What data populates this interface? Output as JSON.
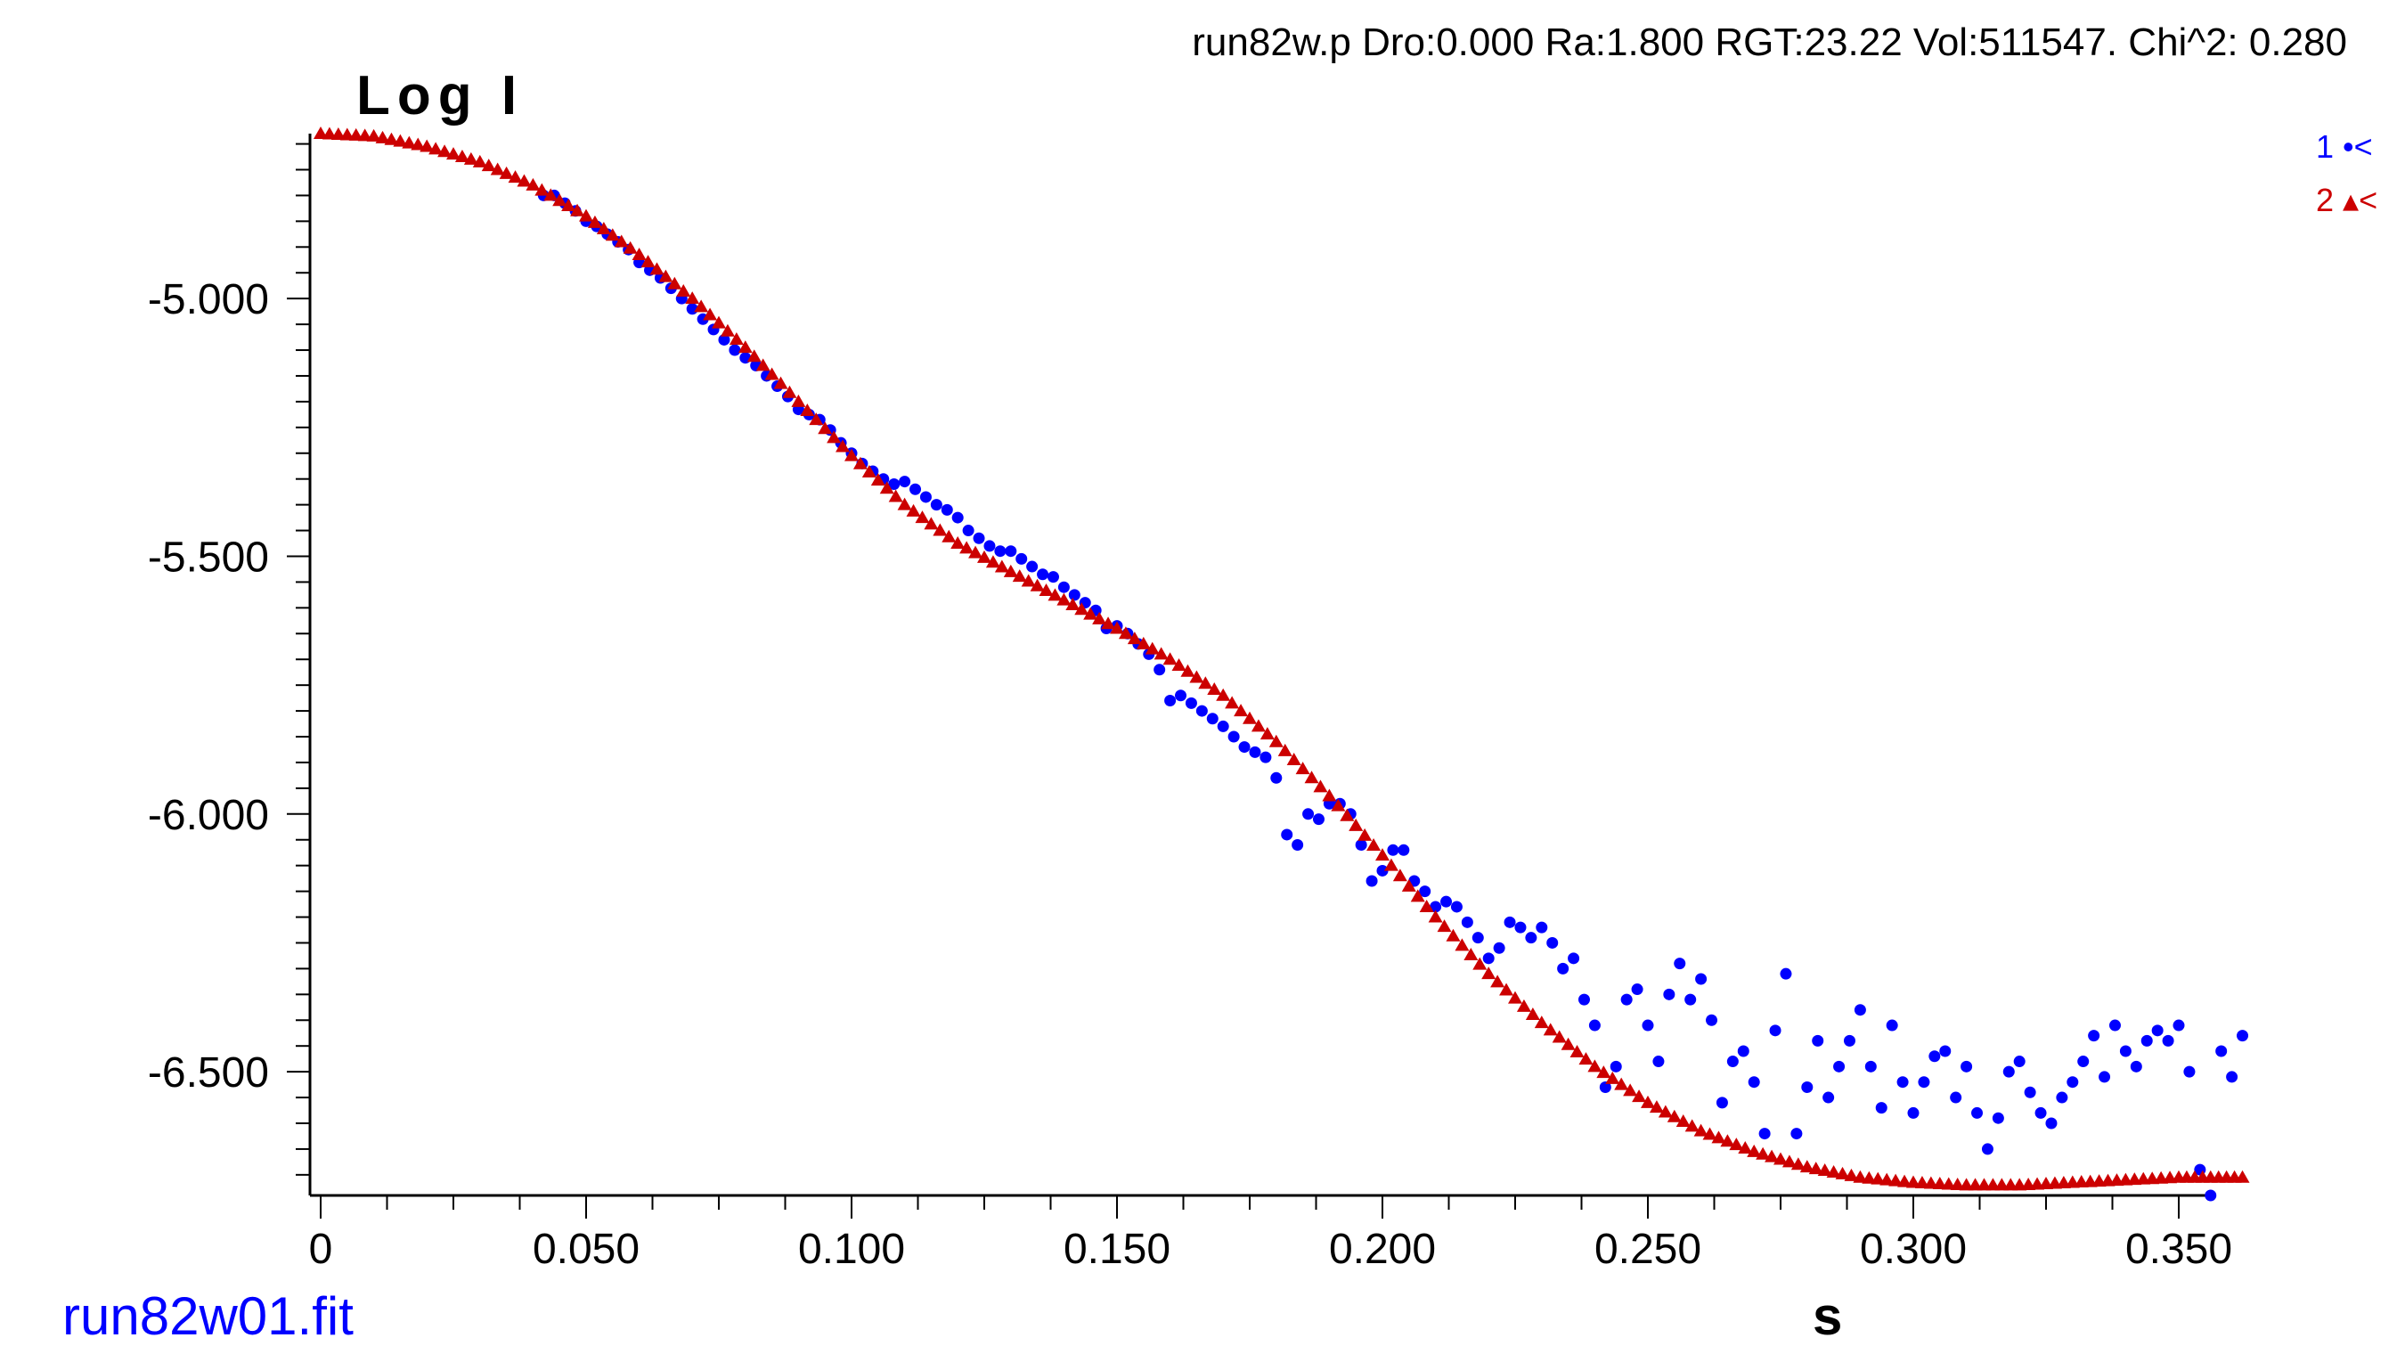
{
  "header": {
    "info": "run82w.p  Dro:0.000  Ra:1.800  RGT:23.22  Vol:511547.  Chi^2:  0.280"
  },
  "footer": {
    "filename": "run82w01.fit"
  },
  "colors": {
    "series1": "#0000ff",
    "series2": "#cc0000",
    "axis": "#000000"
  },
  "chart_data": {
    "type": "scatter",
    "title": "",
    "xlabel": "s",
    "ylabel": "Log  I",
    "xlim": [
      0,
      0.363
    ],
    "ylim": [
      -6.74,
      -4.68
    ],
    "grid": false,
    "legend_position": "top-right",
    "xticks": [
      {
        "value": 0,
        "label": "0"
      },
      {
        "value": 0.05,
        "label": "0.050"
      },
      {
        "value": 0.1,
        "label": "0.100"
      },
      {
        "value": 0.15,
        "label": "0.150"
      },
      {
        "value": 0.2,
        "label": "0.200"
      },
      {
        "value": 0.25,
        "label": "0.250"
      },
      {
        "value": 0.3,
        "label": "0.300"
      },
      {
        "value": 0.35,
        "label": "0.350"
      }
    ],
    "yticks": [
      {
        "value": -5.0,
        "label": "-5.000"
      },
      {
        "value": -5.5,
        "label": "-5.500"
      },
      {
        "value": -6.0,
        "label": "-6.000"
      },
      {
        "value": -6.5,
        "label": "-6.500"
      }
    ],
    "series": [
      {
        "legend": "1 •<",
        "marker": "circle",
        "color": "#0000ff",
        "points": [
          [
            0.042,
            -4.8
          ],
          [
            0.044,
            -4.8
          ],
          [
            0.046,
            -4.815
          ],
          [
            0.048,
            -4.83
          ],
          [
            0.05,
            -4.85
          ],
          [
            0.052,
            -4.86
          ],
          [
            0.054,
            -4.875
          ],
          [
            0.056,
            -4.89
          ],
          [
            0.058,
            -4.905
          ],
          [
            0.06,
            -4.93
          ],
          [
            0.062,
            -4.945
          ],
          [
            0.064,
            -4.96
          ],
          [
            0.066,
            -4.98
          ],
          [
            0.068,
            -5.0
          ],
          [
            0.07,
            -5.02
          ],
          [
            0.072,
            -5.04
          ],
          [
            0.074,
            -5.06
          ],
          [
            0.076,
            -5.08
          ],
          [
            0.078,
            -5.1
          ],
          [
            0.08,
            -5.115
          ],
          [
            0.082,
            -5.13
          ],
          [
            0.084,
            -5.15
          ],
          [
            0.086,
            -5.17
          ],
          [
            0.088,
            -5.19
          ],
          [
            0.09,
            -5.215
          ],
          [
            0.092,
            -5.225
          ],
          [
            0.094,
            -5.235
          ],
          [
            0.096,
            -5.255
          ],
          [
            0.098,
            -5.28
          ],
          [
            0.1,
            -5.3
          ],
          [
            0.102,
            -5.32
          ],
          [
            0.104,
            -5.335
          ],
          [
            0.106,
            -5.35
          ],
          [
            0.108,
            -5.36
          ],
          [
            0.11,
            -5.355
          ],
          [
            0.112,
            -5.37
          ],
          [
            0.114,
            -5.385
          ],
          [
            0.116,
            -5.4
          ],
          [
            0.118,
            -5.41
          ],
          [
            0.12,
            -5.425
          ],
          [
            0.122,
            -5.45
          ],
          [
            0.124,
            -5.465
          ],
          [
            0.126,
            -5.48
          ],
          [
            0.128,
            -5.49
          ],
          [
            0.13,
            -5.49
          ],
          [
            0.132,
            -5.505
          ],
          [
            0.134,
            -5.52
          ],
          [
            0.136,
            -5.535
          ],
          [
            0.138,
            -5.54
          ],
          [
            0.14,
            -5.56
          ],
          [
            0.142,
            -5.575
          ],
          [
            0.144,
            -5.59
          ],
          [
            0.146,
            -5.605
          ],
          [
            0.148,
            -5.64
          ],
          [
            0.15,
            -5.635
          ],
          [
            0.152,
            -5.65
          ],
          [
            0.154,
            -5.67
          ],
          [
            0.156,
            -5.69
          ],
          [
            0.158,
            -5.72
          ],
          [
            0.16,
            -5.78
          ],
          [
            0.162,
            -5.77
          ],
          [
            0.164,
            -5.785
          ],
          [
            0.166,
            -5.8
          ],
          [
            0.168,
            -5.815
          ],
          [
            0.17,
            -5.83
          ],
          [
            0.172,
            -5.85
          ],
          [
            0.174,
            -5.87
          ],
          [
            0.176,
            -5.88
          ],
          [
            0.178,
            -5.89
          ],
          [
            0.18,
            -5.93
          ],
          [
            0.182,
            -6.04
          ],
          [
            0.184,
            -6.06
          ],
          [
            0.186,
            -6.0
          ],
          [
            0.188,
            -6.01
          ],
          [
            0.19,
            -5.98
          ],
          [
            0.192,
            -5.98
          ],
          [
            0.194,
            -6.0
          ],
          [
            0.196,
            -6.06
          ],
          [
            0.198,
            -6.13
          ],
          [
            0.2,
            -6.11
          ],
          [
            0.202,
            -6.07
          ],
          [
            0.204,
            -6.07
          ],
          [
            0.206,
            -6.13
          ],
          [
            0.208,
            -6.15
          ],
          [
            0.21,
            -6.18
          ],
          [
            0.212,
            -6.17
          ],
          [
            0.214,
            -6.18
          ],
          [
            0.216,
            -6.21
          ],
          [
            0.218,
            -6.24
          ],
          [
            0.22,
            -6.28
          ],
          [
            0.222,
            -6.26
          ],
          [
            0.224,
            -6.21
          ],
          [
            0.226,
            -6.22
          ],
          [
            0.228,
            -6.24
          ],
          [
            0.23,
            -6.22
          ],
          [
            0.232,
            -6.25
          ],
          [
            0.234,
            -6.3
          ],
          [
            0.236,
            -6.28
          ],
          [
            0.238,
            -6.36
          ],
          [
            0.24,
            -6.41
          ],
          [
            0.242,
            -6.53
          ],
          [
            0.244,
            -6.49
          ],
          [
            0.246,
            -6.36
          ],
          [
            0.248,
            -6.34
          ],
          [
            0.25,
            -6.41
          ],
          [
            0.252,
            -6.48
          ],
          [
            0.254,
            -6.35
          ],
          [
            0.256,
            -6.29
          ],
          [
            0.258,
            -6.36
          ],
          [
            0.26,
            -6.32
          ],
          [
            0.262,
            -6.4
          ],
          [
            0.264,
            -6.56
          ],
          [
            0.266,
            -6.48
          ],
          [
            0.268,
            -6.46
          ],
          [
            0.27,
            -6.52
          ],
          [
            0.272,
            -6.62
          ],
          [
            0.274,
            -6.42
          ],
          [
            0.276,
            -6.31
          ],
          [
            0.278,
            -6.62
          ],
          [
            0.28,
            -6.53
          ],
          [
            0.282,
            -6.44
          ],
          [
            0.284,
            -6.55
          ],
          [
            0.286,
            -6.49
          ],
          [
            0.288,
            -6.44
          ],
          [
            0.29,
            -6.38
          ],
          [
            0.292,
            -6.49
          ],
          [
            0.294,
            -6.57
          ],
          [
            0.296,
            -6.41
          ],
          [
            0.298,
            -6.52
          ],
          [
            0.3,
            -6.58
          ],
          [
            0.302,
            -6.52
          ],
          [
            0.304,
            -6.47
          ],
          [
            0.306,
            -6.46
          ],
          [
            0.308,
            -6.55
          ],
          [
            0.31,
            -6.49
          ],
          [
            0.312,
            -6.58
          ],
          [
            0.314,
            -6.65
          ],
          [
            0.316,
            -6.59
          ],
          [
            0.318,
            -6.5
          ],
          [
            0.32,
            -6.48
          ],
          [
            0.322,
            -6.54
          ],
          [
            0.324,
            -6.58
          ],
          [
            0.326,
            -6.6
          ],
          [
            0.328,
            -6.55
          ],
          [
            0.33,
            -6.52
          ],
          [
            0.332,
            -6.48
          ],
          [
            0.334,
            -6.43
          ],
          [
            0.336,
            -6.51
          ],
          [
            0.338,
            -6.41
          ],
          [
            0.34,
            -6.46
          ],
          [
            0.342,
            -6.49
          ],
          [
            0.344,
            -6.44
          ],
          [
            0.346,
            -6.42
          ],
          [
            0.348,
            -6.44
          ],
          [
            0.35,
            -6.41
          ],
          [
            0.352,
            -6.5
          ],
          [
            0.354,
            -6.69
          ],
          [
            0.356,
            -6.74
          ],
          [
            0.358,
            -6.46
          ],
          [
            0.36,
            -6.51
          ],
          [
            0.362,
            -6.43
          ]
        ]
      },
      {
        "legend": "2 ▴<",
        "marker": "triangle",
        "color": "#cc0000",
        "points": [
          [
            0.0,
            -4.68
          ],
          [
            0.01,
            -4.685
          ],
          [
            0.02,
            -4.705
          ],
          [
            0.03,
            -4.735
          ],
          [
            0.04,
            -4.78
          ],
          [
            0.05,
            -4.84
          ],
          [
            0.06,
            -4.915
          ],
          [
            0.07,
            -5.0
          ],
          [
            0.08,
            -5.095
          ],
          [
            0.09,
            -5.2
          ],
          [
            0.1,
            -5.305
          ],
          [
            0.11,
            -5.4
          ],
          [
            0.12,
            -5.475
          ],
          [
            0.13,
            -5.53
          ],
          [
            0.14,
            -5.585
          ],
          [
            0.15,
            -5.64
          ],
          [
            0.16,
            -5.7
          ],
          [
            0.17,
            -5.77
          ],
          [
            0.18,
            -5.86
          ],
          [
            0.19,
            -5.965
          ],
          [
            0.2,
            -6.08
          ],
          [
            0.21,
            -6.2
          ],
          [
            0.22,
            -6.31
          ],
          [
            0.23,
            -6.405
          ],
          [
            0.24,
            -6.49
          ],
          [
            0.25,
            -6.56
          ],
          [
            0.26,
            -6.615
          ],
          [
            0.27,
            -6.655
          ],
          [
            0.28,
            -6.685
          ],
          [
            0.29,
            -6.705
          ],
          [
            0.3,
            -6.715
          ],
          [
            0.31,
            -6.72
          ],
          [
            0.32,
            -6.72
          ],
          [
            0.33,
            -6.715
          ],
          [
            0.34,
            -6.71
          ],
          [
            0.35,
            -6.705
          ],
          [
            0.362,
            -6.705
          ]
        ]
      }
    ]
  }
}
